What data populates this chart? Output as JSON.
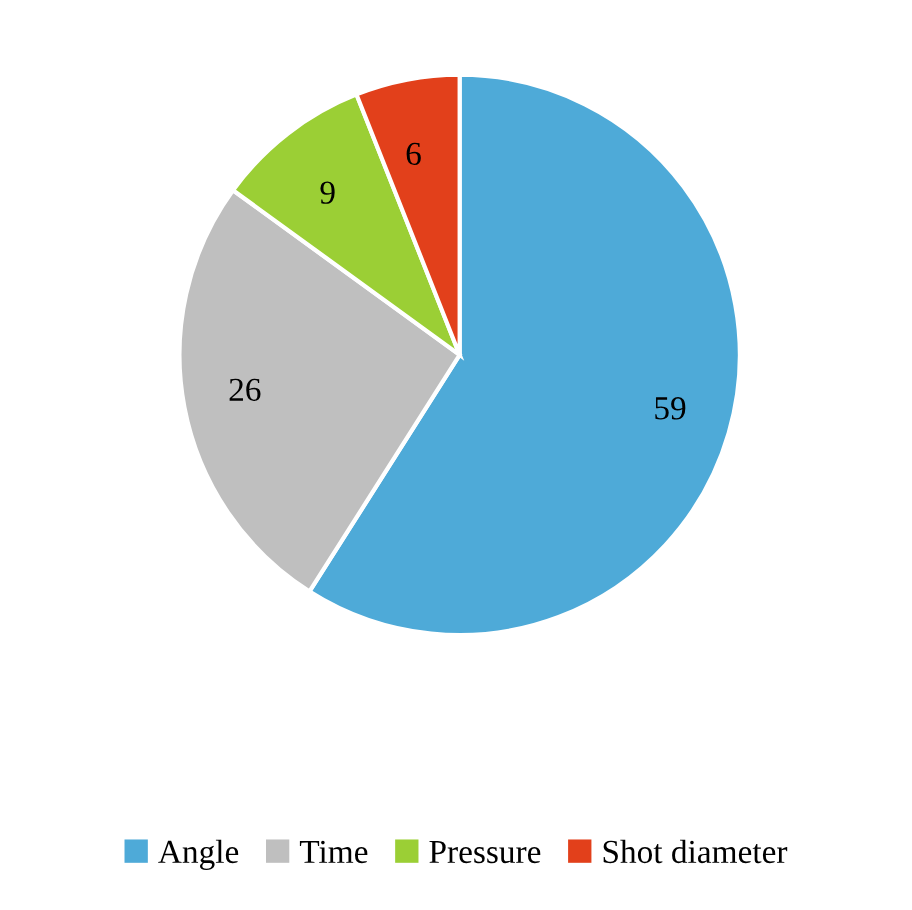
{
  "chart_data": {
    "type": "pie",
    "categories": [
      "Angle",
      "Time",
      "Pressure",
      "Shot diameter"
    ],
    "values": [
      59,
      26,
      9,
      6
    ],
    "colors": [
      "#4eaad8",
      "#bfbfbf",
      "#9bcf35",
      "#e2401b"
    ],
    "data_labels": true,
    "legend": "bottom"
  }
}
